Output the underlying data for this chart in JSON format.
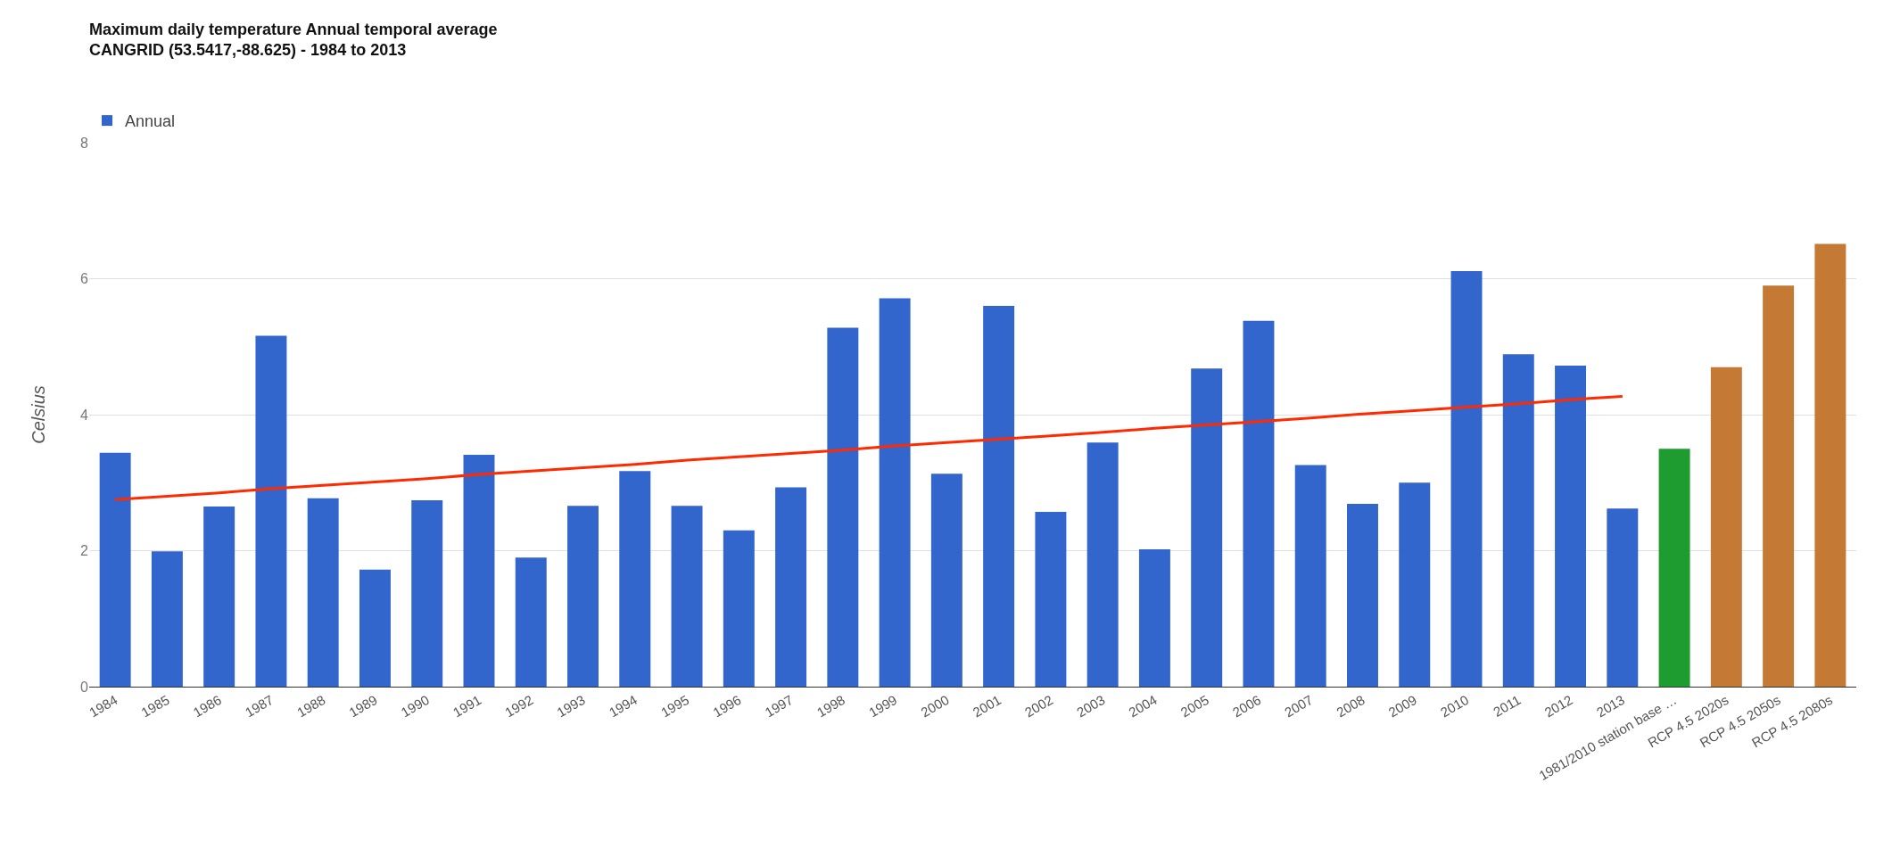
{
  "chart_data": {
    "type": "bar",
    "title": "Maximum daily temperature Annual temporal average",
    "subtitle": "CANGRID (53.5417,-88.625) - 1984 to 2013",
    "ylabel": "Celsius",
    "categories": [
      "1984",
      "1985",
      "1986",
      "1987",
      "1988",
      "1989",
      "1990",
      "1991",
      "1992",
      "1993",
      "1994",
      "1995",
      "1996",
      "1997",
      "1998",
      "1999",
      "2000",
      "2001",
      "2002",
      "2003",
      "2004",
      "2005",
      "2006",
      "2007",
      "2008",
      "2009",
      "2010",
      "2011",
      "2012",
      "2013",
      "1981/2010 station base …",
      "RCP 4.5 2020s",
      "RCP 4.5 2050s",
      "RCP 4.5 2080s"
    ],
    "series": [
      {
        "name": "Annual",
        "colors": [
          "#3366cc",
          "#3366cc",
          "#3366cc",
          "#3366cc",
          "#3366cc",
          "#3366cc",
          "#3366cc",
          "#3366cc",
          "#3366cc",
          "#3366cc",
          "#3366cc",
          "#3366cc",
          "#3366cc",
          "#3366cc",
          "#3366cc",
          "#3366cc",
          "#3366cc",
          "#3366cc",
          "#3366cc",
          "#3366cc",
          "#3366cc",
          "#3366cc",
          "#3366cc",
          "#3366cc",
          "#3366cc",
          "#3366cc",
          "#3366cc",
          "#3366cc",
          "#3366cc",
          "#3366cc",
          "#1f9c2f",
          "#c47a35",
          "#c47a35",
          "#c47a35"
        ],
        "values": [
          3.44,
          1.99,
          2.65,
          5.16,
          2.77,
          1.72,
          2.74,
          3.41,
          1.9,
          2.66,
          3.17,
          2.66,
          2.3,
          2.93,
          5.28,
          5.71,
          3.13,
          5.6,
          2.57,
          3.59,
          2.02,
          4.68,
          5.38,
          3.26,
          2.69,
          3.0,
          6.11,
          4.89,
          4.72,
          2.62,
          3.5,
          4.7,
          5.9,
          6.51
        ]
      },
      {
        "type": "line",
        "color": "#ff2a00",
        "values": [
          2.75,
          2.8,
          2.85,
          2.91,
          2.96,
          3.01,
          3.06,
          3.12,
          3.17,
          3.22,
          3.27,
          3.33,
          3.38,
          3.43,
          3.48,
          3.54,
          3.59,
          3.64,
          3.69,
          3.74,
          3.8,
          3.85,
          3.9,
          3.95,
          4.01,
          4.06,
          4.11,
          4.16,
          4.22,
          4.27,
          null,
          null,
          null,
          null
        ],
        "line_style": "solid"
      }
    ],
    "ylim": [
      0,
      8
    ],
    "yticks": [
      0,
      2,
      4,
      6,
      8
    ],
    "grid": "y",
    "legend": "top left",
    "marker": "none"
  }
}
